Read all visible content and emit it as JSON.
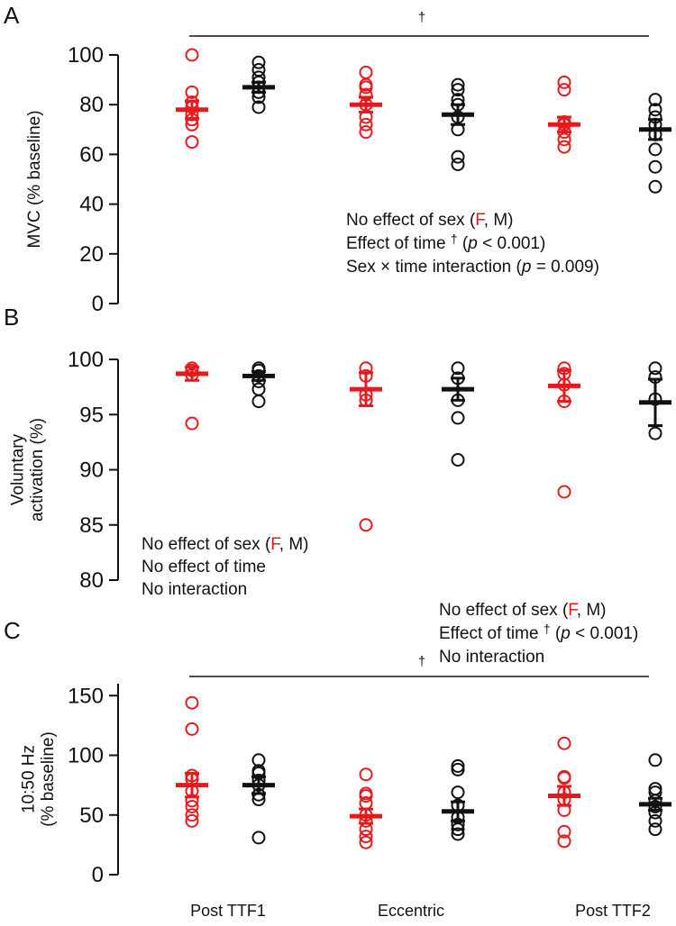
{
  "chart_data": {
    "type": "scatter",
    "categories": [
      "Post TTF1",
      "Eccentric",
      "Post TTF2"
    ],
    "series_colors": {
      "F": "#e8191d",
      "M": "#111111"
    },
    "legend_words": {
      "prefix": "No effect of sex (",
      "female": "F",
      "sep": ", ",
      "male": "M",
      "suffix": ")"
    },
    "panels": [
      {
        "letter": "A",
        "ylabel": [
          "MVC (% baseline)"
        ],
        "ylim": [
          0,
          100
        ],
        "yticks": [
          0,
          20,
          40,
          60,
          80,
          100
        ],
        "time_dagger": "†",
        "annotations": [
          {
            "kind": "sex"
          },
          {
            "kind": "time",
            "text": "Effect of time",
            "dagger": "†",
            "open": "(",
            "p": "p",
            "rest": " < 0.001)"
          },
          {
            "kind": "p",
            "text": "Sex × time interaction (",
            "p": "p",
            "rest": " = 0.009)"
          }
        ],
        "groups": [
          {
            "category": "Post TTF1",
            "sex": "F",
            "mean": 78,
            "sem": 3.5,
            "points": [
              65,
              72,
              74,
              76,
              79,
              81,
              85,
              100
            ]
          },
          {
            "category": "Post TTF1",
            "sex": "M",
            "mean": 87,
            "sem": 2,
            "points": [
              79,
              83,
              85,
              87,
              89,
              91,
              94,
              97
            ]
          },
          {
            "category": "Eccentric",
            "sex": "F",
            "mean": 80,
            "sem": 3,
            "points": [
              69,
              72,
              75,
              80,
              84,
              87,
              88,
              93
            ]
          },
          {
            "category": "Eccentric",
            "sex": "M",
            "mean": 76,
            "sem": 4,
            "points": [
              56,
              59,
              70,
              75,
              80,
              82,
              86,
              88
            ]
          },
          {
            "category": "Post TTF2",
            "sex": "F",
            "mean": 72,
            "sem": 3,
            "points": [
              63,
              66,
              69,
              72,
              73,
              86,
              89
            ]
          },
          {
            "category": "Post TTF2",
            "sex": "M",
            "mean": 70,
            "sem": 4,
            "points": [
              47,
              55,
              62,
              68,
              72,
              75,
              78,
              82
            ]
          }
        ]
      },
      {
        "letter": "B",
        "ylabel": [
          "Voluntary",
          "activation (%)"
        ],
        "ylim": [
          80,
          100
        ],
        "yticks": [
          80,
          85,
          90,
          95,
          100
        ],
        "annotations": [
          {
            "kind": "sex"
          },
          {
            "kind": "plain",
            "text": "No effect of time"
          },
          {
            "kind": "plain",
            "text": "No interaction"
          }
        ],
        "groups": [
          {
            "category": "Post TTF1",
            "sex": "F",
            "mean": 98.7,
            "sem": 0.6,
            "points": [
              94.2,
              98.6,
              99.0,
              99.2
            ]
          },
          {
            "category": "Post TTF1",
            "sex": "M",
            "mean": 98.5,
            "sem": 0.4,
            "points": [
              96.2,
              97.3,
              98.0,
              98.5,
              99.0,
              99.2
            ]
          },
          {
            "category": "Eccentric",
            "sex": "F",
            "mean": 97.3,
            "sem": 1.5,
            "points": [
              85.0,
              96.3,
              96.8,
              98.5,
              99.2
            ]
          },
          {
            "category": "Eccentric",
            "sex": "M",
            "mean": 97.3,
            "sem": 1.0,
            "points": [
              90.9,
              94.7,
              96.3,
              98.3,
              99.2
            ]
          },
          {
            "category": "Post TTF2",
            "sex": "F",
            "mean": 97.6,
            "sem": 1.4,
            "points": [
              88.0,
              96.2,
              97.7,
              98.7,
              99.2
            ]
          },
          {
            "category": "Post TTF2",
            "sex": "M",
            "mean": 96.1,
            "sem": 2.1,
            "points": [
              93.3,
              96.4,
              98.4,
              99.2
            ]
          }
        ]
      },
      {
        "letter": "C",
        "ylabel": [
          "10:50 Hz",
          "(% baseline)"
        ],
        "ylim": [
          0,
          160
        ],
        "yticks": [
          0,
          50,
          100,
          150
        ],
        "time_dagger": "†",
        "annotations": [
          {
            "kind": "sex"
          },
          {
            "kind": "time",
            "text": "Effect of time",
            "dagger": "†",
            "open": "(",
            "p": "p",
            "rest": " < 0.001)"
          },
          {
            "kind": "plain",
            "text": "No interaction"
          }
        ],
        "groups": [
          {
            "category": "Post TTF1",
            "sex": "F",
            "mean": 75,
            "sem": 10,
            "points": [
              45,
              50,
              57,
              62,
              70,
              80,
              83,
              122,
              144
            ]
          },
          {
            "category": "Post TTF1",
            "sex": "M",
            "mean": 75,
            "sem": 7,
            "points": [
              31,
              63,
              67,
              75,
              79,
              85,
              87,
              96
            ]
          },
          {
            "category": "Eccentric",
            "sex": "F",
            "mean": 49,
            "sem": 6,
            "points": [
              27,
              32,
              38,
              45,
              50,
              60,
              66,
              68,
              84
            ]
          },
          {
            "category": "Eccentric",
            "sex": "M",
            "mean": 53,
            "sem": 8,
            "points": [
              34,
              38,
              42,
              48,
              58,
              69,
              88,
              91
            ]
          },
          {
            "category": "Post TTF2",
            "sex": "F",
            "mean": 66,
            "sem": 8,
            "points": [
              28,
              36,
              54,
              63,
              69,
              81,
              82,
              110
            ]
          },
          {
            "category": "Post TTF2",
            "sex": "M",
            "mean": 59,
            "sem": 5,
            "points": [
              38,
              45,
              52,
              57,
              62,
              69,
              72,
              96
            ]
          }
        ]
      }
    ]
  }
}
